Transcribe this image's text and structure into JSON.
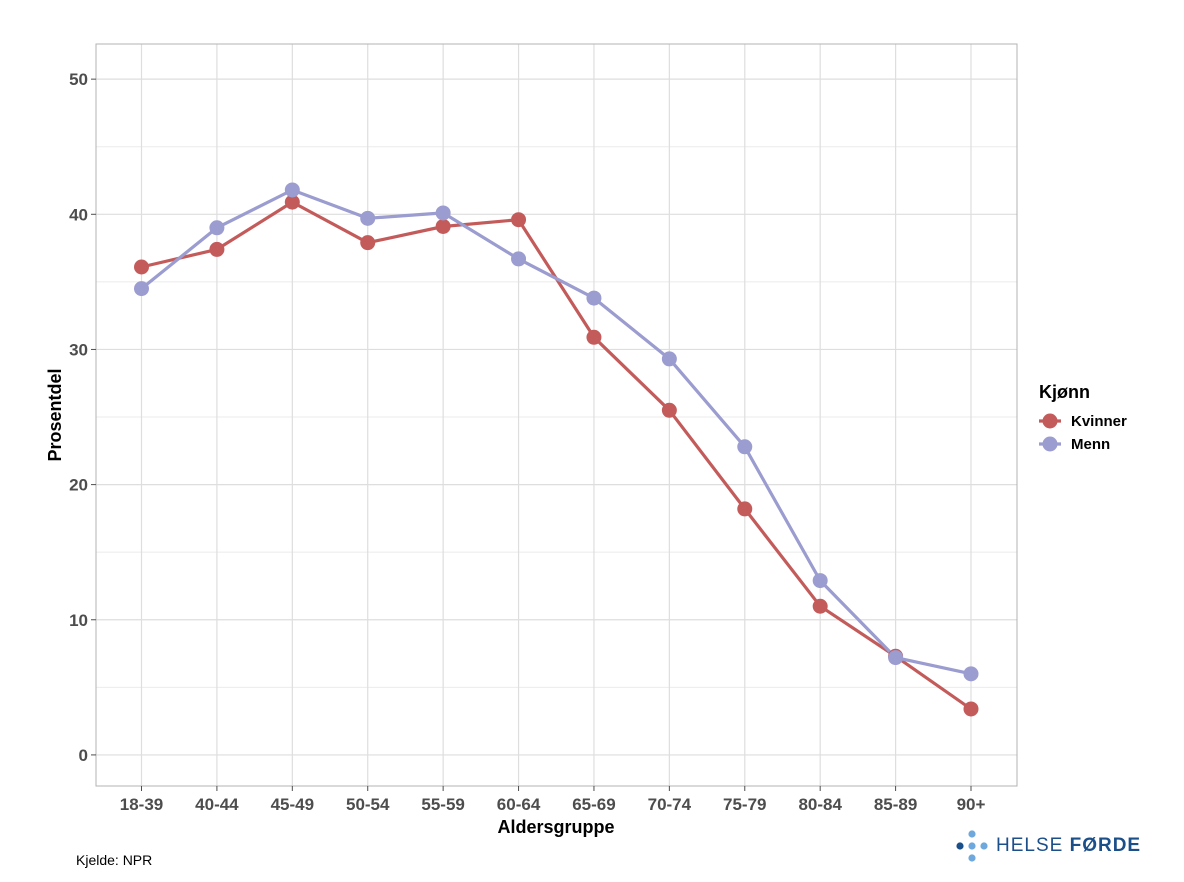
{
  "chart_data": {
    "type": "line",
    "categories": [
      "18-39",
      "40-44",
      "45-49",
      "50-54",
      "55-59",
      "60-64",
      "65-69",
      "70-74",
      "75-79",
      "80-84",
      "85-89",
      "90+"
    ],
    "series": [
      {
        "name": "Kvinner",
        "color": "#c45b5b",
        "values": [
          36.1,
          37.4,
          40.9,
          37.9,
          39.1,
          39.6,
          30.9,
          25.5,
          18.2,
          11.0,
          7.3,
          3.4
        ]
      },
      {
        "name": "Menn",
        "color": "#9b9ccf",
        "values": [
          34.5,
          39.0,
          41.8,
          39.7,
          40.1,
          36.7,
          33.8,
          29.3,
          22.8,
          12.9,
          7.2,
          6.0
        ]
      }
    ],
    "xlabel": "Aldersgruppe",
    "ylabel": "Prosentdel",
    "ylim": [
      -2.3,
      52.6
    ],
    "yticks": [
      0,
      10,
      20,
      30,
      40,
      50
    ],
    "legend": {
      "title": "Kjønn",
      "placement": "right"
    },
    "grid": true
  },
  "source": "Kjelde: NPR",
  "logo": {
    "text_light": "HELSE ",
    "text_bold": "FØRDE"
  }
}
